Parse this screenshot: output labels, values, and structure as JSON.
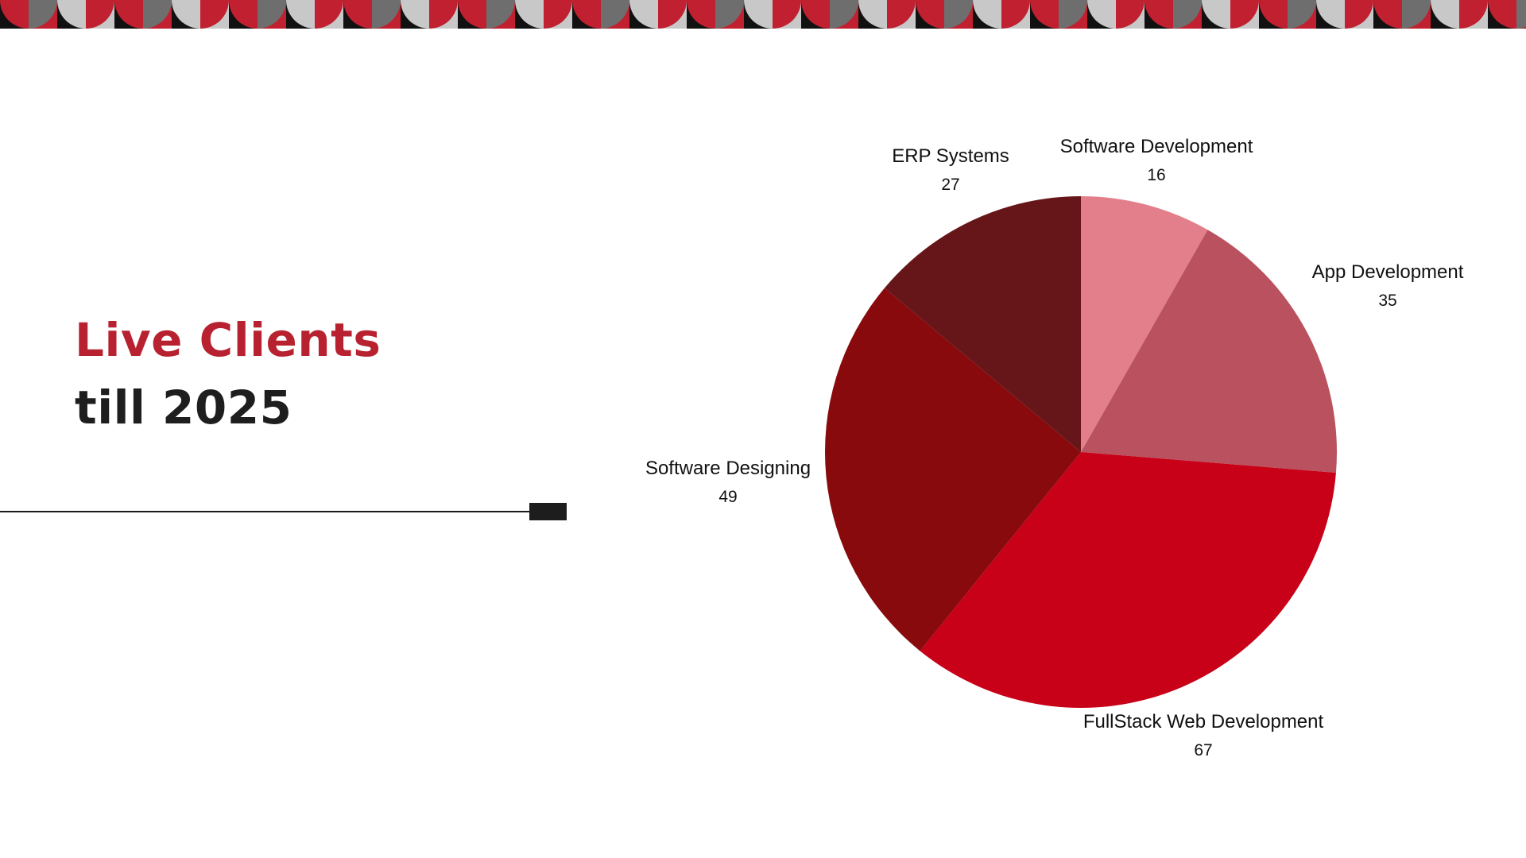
{
  "title": {
    "line1": "Live Clients",
    "line2": "till 2025"
  },
  "colors": {
    "accent": "#b82230",
    "title_dark": "#1e1e1e",
    "border_red": "#c0202f",
    "border_light_gray": "#c8c8c8",
    "border_dark_gray": "#6e6e6e",
    "border_black": "#111111"
  },
  "chart_data": {
    "type": "pie",
    "start_angle_deg": 0,
    "direction": "clockwise",
    "slices": [
      {
        "label": "Software Development",
        "value": 16,
        "color": "#e37f8a"
      },
      {
        "label": "App Development",
        "value": 35,
        "color": "#b9525e"
      },
      {
        "label": "FullStack Web Development",
        "value": 67,
        "color": "#c80018"
      },
      {
        "label": "Software Designing",
        "value": 49,
        "color": "#880a0d"
      },
      {
        "label": "ERP Systems",
        "value": 27,
        "color": "#661619"
      }
    ]
  }
}
